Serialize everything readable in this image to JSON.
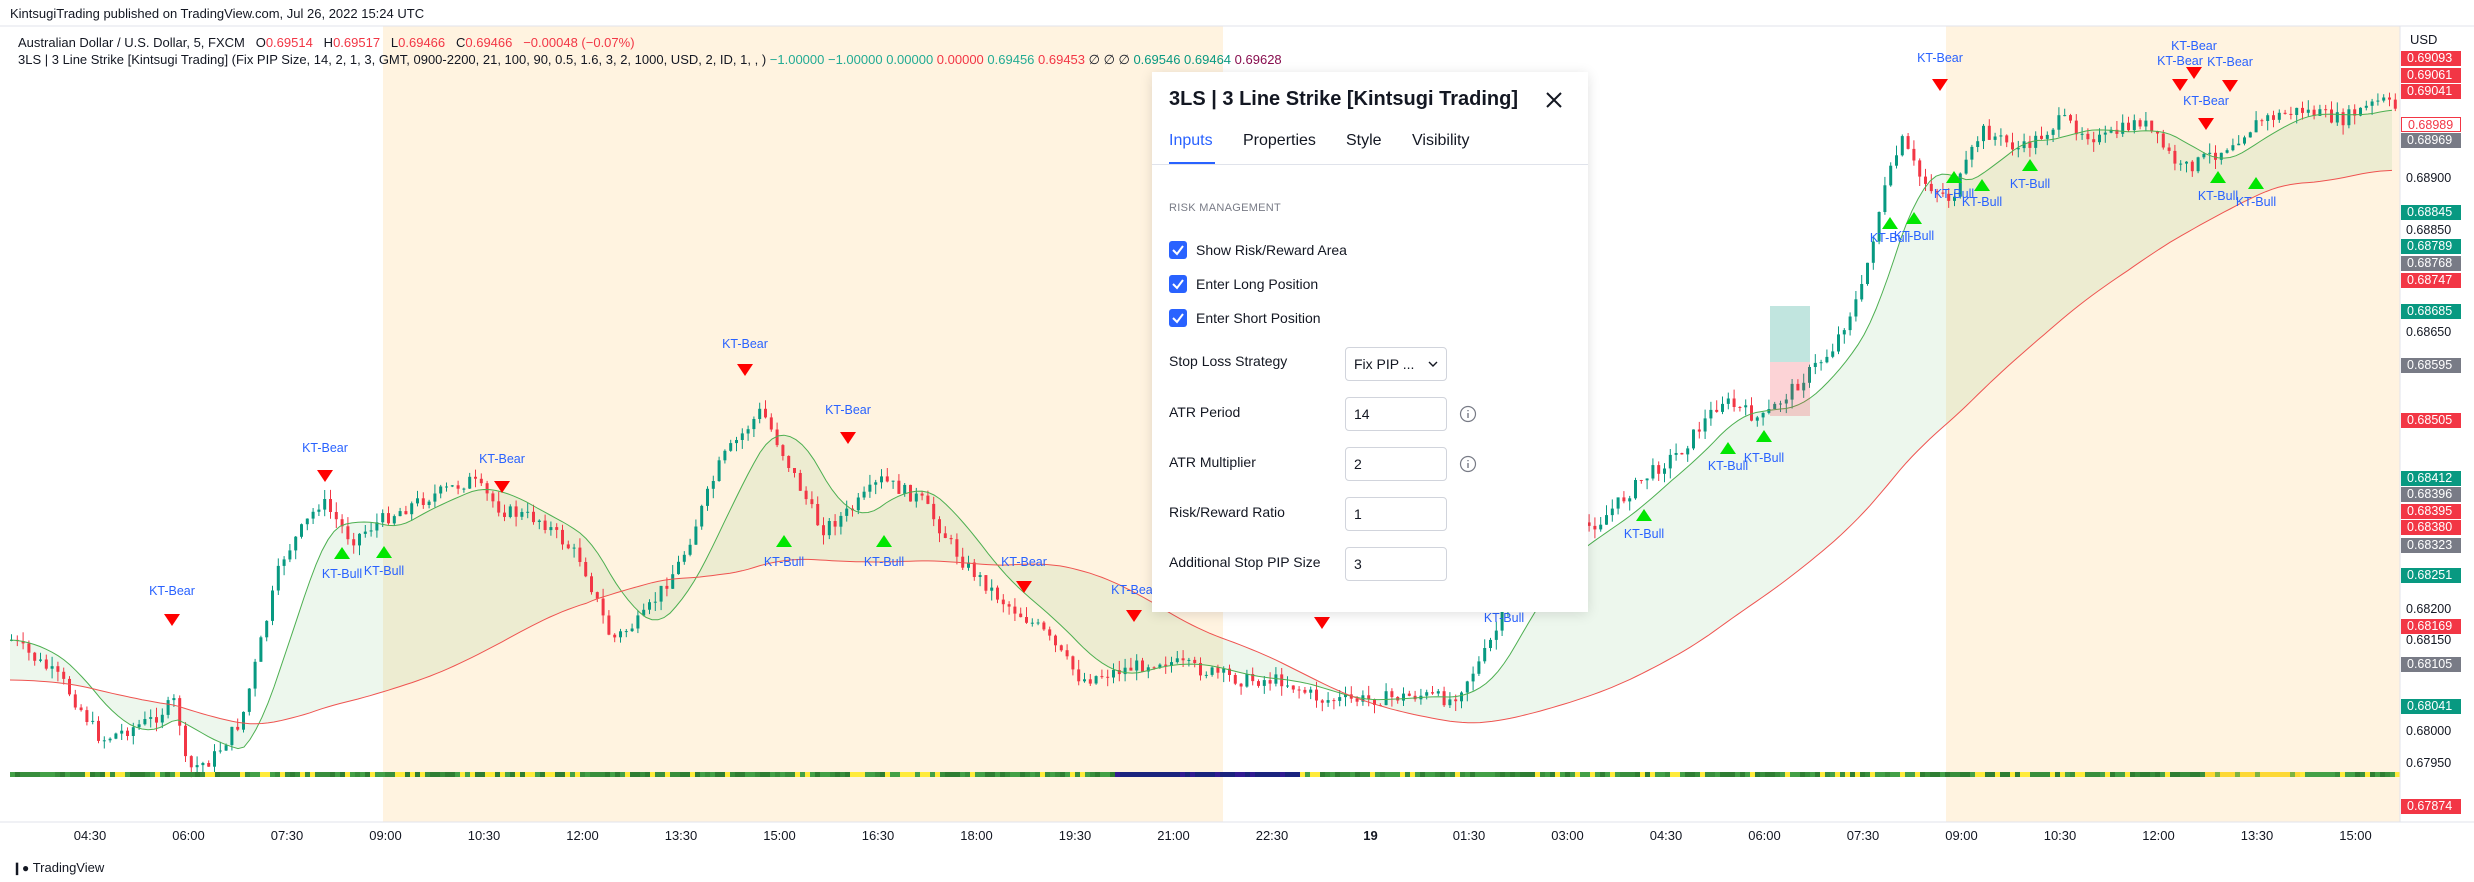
{
  "header": {
    "published": "KintsugiTrading published on TradingView.com, Jul 26, 2022 15:24 UTC"
  },
  "legend": {
    "symbol": "Australian Dollar / U.S. Dollar, 5, FXCM",
    "o_label": "O",
    "o_value": "0.69514",
    "h_label": "H",
    "h_value": "0.69517",
    "l_label": "L",
    "l_value": "0.69466",
    "c_label": "C",
    "c_value": "0.69466",
    "change": "−0.00048 (−0.07%)",
    "indicator_params": "3LS | 3 Line Strike [Kintsugi Trading] (Fix PIP Size, 14, 2, 1, 3, GMT, 0900-2200, 21, 100, 90, 0.5, 1.6, 3, 2, 1000, USD, 2, ID, 1, , )",
    "values": [
      {
        "text": "−1.00000",
        "color": "#22ab94"
      },
      {
        "text": "−1.00000",
        "color": "#22ab94"
      },
      {
        "text": "0.00000",
        "color": "#22ab94"
      },
      {
        "text": "0.00000",
        "color": "#f23645"
      },
      {
        "text": "0.69456",
        "color": "#22ab94"
      },
      {
        "text": "0.69453",
        "color": "#f23645"
      },
      {
        "text": "∅",
        "color": "#131722"
      },
      {
        "text": "∅",
        "color": "#131722"
      },
      {
        "text": "∅",
        "color": "#131722"
      },
      {
        "text": "0.69546",
        "color": "#089981"
      },
      {
        "text": "0.69464",
        "color": "#089981"
      },
      {
        "text": "0.69628",
        "color": "#880e4f"
      }
    ]
  },
  "price_axis": {
    "currency": "USD",
    "labels": [
      "0.68900",
      "0.68850",
      "0.68650",
      "0.68200",
      "0.68150",
      "0.68000",
      "0.67950"
    ],
    "tags": [
      {
        "text": "0.69093",
        "color": "#f23645"
      },
      {
        "text": "0.69061",
        "color": "#f23645"
      },
      {
        "text": "0.69041",
        "color": "#f23645"
      },
      {
        "text": "0.68989",
        "color": "#ffffff"
      },
      {
        "text": "0.68969",
        "color": "#787b86"
      },
      {
        "text": "0.68845",
        "color": "#089981"
      },
      {
        "text": "0.68789",
        "color": "#089981"
      },
      {
        "text": "0.68768",
        "color": "#787b86"
      },
      {
        "text": "0.68747",
        "color": "#f23645"
      },
      {
        "text": "0.68685",
        "color": "#089981"
      },
      {
        "text": "0.68595",
        "color": "#787b86"
      },
      {
        "text": "0.68505",
        "color": "#f23645"
      },
      {
        "text": "0.68412",
        "color": "#089981"
      },
      {
        "text": "0.68396",
        "color": "#787b86"
      },
      {
        "text": "0.68395",
        "color": "#f23645"
      },
      {
        "text": "0.68380",
        "color": "#f23645"
      },
      {
        "text": "0.68323",
        "color": "#787b86"
      },
      {
        "text": "0.68251",
        "color": "#089981"
      },
      {
        "text": "0.68169",
        "color": "#f23645"
      },
      {
        "text": "0.68105",
        "color": "#787b86"
      },
      {
        "text": "0.68041",
        "color": "#089981"
      },
      {
        "text": "0.67874",
        "color": "#f23645"
      }
    ]
  },
  "time_axis": [
    "04:30",
    "06:00",
    "07:30",
    "09:00",
    "10:30",
    "12:00",
    "13:30",
    "15:00",
    "16:30",
    "18:00",
    "19:30",
    "21:00",
    "22:30",
    "19",
    "01:30",
    "03:00",
    "04:30",
    "06:00",
    "07:30",
    "09:00",
    "10:30",
    "12:00",
    "13:30",
    "15:00"
  ],
  "signals": {
    "bear_label": "KT-Bear",
    "bull_label": "KT-Bull"
  },
  "dialog": {
    "title": "3LS | 3 Line Strike [Kintsugi Trading]",
    "tabs": [
      "Inputs",
      "Properties",
      "Style",
      "Visibility"
    ],
    "section": "RISK MANAGEMENT",
    "checkboxes": [
      {
        "label": "Show Risk/Reward Area",
        "checked": true
      },
      {
        "label": "Enter Long Position",
        "checked": true
      },
      {
        "label": "Enter Short Position",
        "checked": true
      }
    ],
    "stop_loss": {
      "label": "Stop Loss Strategy",
      "value": "Fix PIP ..."
    },
    "atr_period": {
      "label": "ATR Period",
      "value": "14"
    },
    "atr_multiplier": {
      "label": "ATR Multiplier",
      "value": "2"
    },
    "risk_reward": {
      "label": "Risk/Reward Ratio",
      "value": "1"
    },
    "stop_pip": {
      "label": "Additional Stop PIP Size",
      "value": "3"
    }
  },
  "footer": {
    "brand": "TradingView"
  },
  "colors": {
    "session_shade": "#fff3e0",
    "bull_candle": "#089981",
    "bear_candle": "#f23645",
    "fast_ma": "#4caf50",
    "slow_ma": "#ef5350",
    "bull_marker": "#00e600",
    "bear_marker": "#ff0000",
    "accent": "#2962ff"
  }
}
